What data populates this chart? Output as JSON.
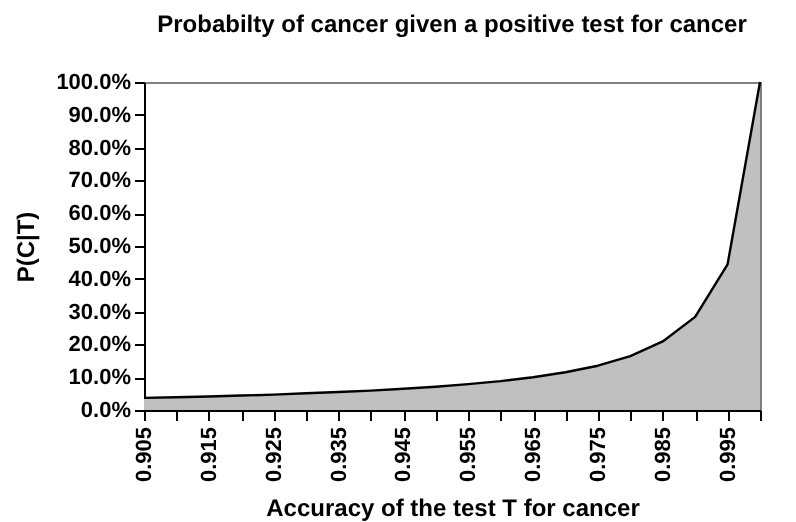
{
  "chart_data": {
    "type": "area",
    "title": "Probabilty of cancer given a positive test for cancer",
    "xlabel": "Accuracy of the test T for cancer",
    "ylabel": "P(C|T)",
    "categories": [
      "0.905",
      null,
      "0.915",
      null,
      "0.925",
      null,
      "0.935",
      null,
      "0.945",
      null,
      "0.955",
      null,
      "0.965",
      null,
      "0.975",
      null,
      "0.985",
      null,
      "0.995",
      null
    ],
    "series": [
      {
        "color": "#c0c0c0",
        "values": [
          3.7,
          3.9,
          4.1,
          4.4,
          4.7,
          5.1,
          5.5,
          5.9,
          6.5,
          7.1,
          7.9,
          8.8,
          10.0,
          11.5,
          13.5,
          16.4,
          20.9,
          28.4,
          44.4,
          100
        ]
      }
    ],
    "ylim": [
      0,
      100
    ],
    "yticks": [
      {
        "value": 0,
        "label": "0.0%"
      },
      {
        "value": 10,
        "label": "10.0%"
      },
      {
        "value": 20,
        "label": "20.0%"
      },
      {
        "value": 30,
        "label": "30.0%"
      },
      {
        "value": 40,
        "label": "40.0%"
      },
      {
        "value": 50,
        "label": "50.0%"
      },
      {
        "value": 60,
        "label": "60.0%"
      },
      {
        "value": 70,
        "label": "70.0%"
      },
      {
        "value": 80,
        "label": "80.0%"
      },
      {
        "value": 90,
        "label": "90.0%"
      },
      {
        "value": 100,
        "label": "100.0%"
      }
    ],
    "grid": false
  }
}
